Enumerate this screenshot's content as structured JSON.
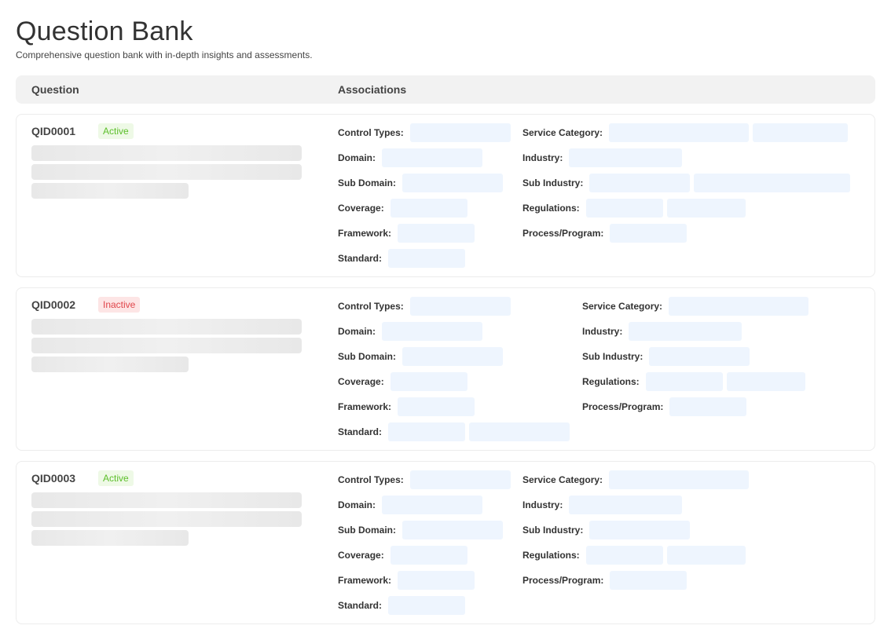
{
  "header": {
    "title": "Question Bank",
    "subtitle": "Comprehensive question bank with in-depth insights and assessments."
  },
  "table": {
    "columns": {
      "question": "Question",
      "associations": "Associations"
    }
  },
  "questions": [
    {
      "id": "QID0001",
      "status": "Active",
      "assoc": {
        "control_types": "Control Types:",
        "domain": "Domain:",
        "sub_domain": "Sub Domain:",
        "coverage": "Coverage:",
        "framework": "Framework:",
        "standard": "Standard:",
        "service_category": "Service Category:",
        "industry": "Industry:",
        "sub_industry": "Sub Industry:",
        "regulations": "Regulations:",
        "process_program": "Process/Program:"
      }
    },
    {
      "id": "QID0002",
      "status": "Inactive",
      "assoc": {
        "control_types": "Control Types:",
        "domain": "Domain:",
        "sub_domain": "Sub Domain:",
        "coverage": "Coverage:",
        "framework": "Framework:",
        "standard": "Standard:",
        "service_category": "Service Category:",
        "industry": "Industry:",
        "sub_industry": "Sub Industry:",
        "regulations": "Regulations:",
        "process_program": "Process/Program:"
      }
    },
    {
      "id": "QID0003",
      "status": "Active",
      "assoc": {
        "control_types": "Control Types:",
        "domain": "Domain:",
        "sub_domain": "Sub Domain:",
        "coverage": "Coverage:",
        "framework": "Framework:",
        "standard": "Standard:",
        "service_category": "Service Category:",
        "industry": "Industry:",
        "sub_industry": "Sub Industry:",
        "regulations": "Regulations:",
        "process_program": "Process/Program:"
      }
    }
  ],
  "colors": {
    "active_text": "#5cbf2a",
    "active_bg": "#eef9e6",
    "inactive_text": "#e0454a",
    "inactive_bg": "#fde5e5",
    "chip_bg": "#eef5fe",
    "skeleton": "#e8e8e8"
  }
}
